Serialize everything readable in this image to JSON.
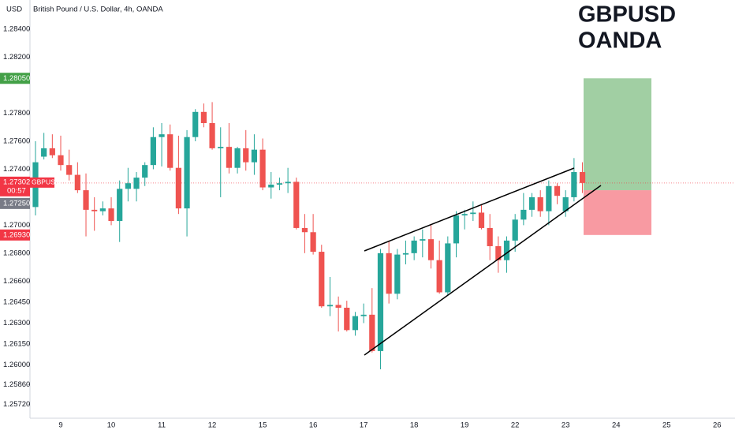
{
  "chart_data": {
    "type": "candlestick",
    "title": "British Pound / U.S. Dollar, 4h, OANDA",
    "y_label": "USD",
    "annotation": [
      "GBPUSD",
      "OANDA"
    ],
    "up_color": "#26a69a",
    "down_color": "#ef5350",
    "ylim": [
      1.2562,
      1.2861
    ],
    "yticks": [
      {
        "value": 1.284,
        "label": "1.28400"
      },
      {
        "value": 1.282,
        "label": "1.28200"
      },
      {
        "value": 1.278,
        "label": "1.27800"
      },
      {
        "value": 1.276,
        "label": "1.27600"
      },
      {
        "value": 1.274,
        "label": "1.27400"
      },
      {
        "value": 1.27,
        "label": "1.27000"
      },
      {
        "value": 1.268,
        "label": "1.26800"
      },
      {
        "value": 1.266,
        "label": "1.26600"
      },
      {
        "value": 1.2645,
        "label": "1.26450"
      },
      {
        "value": 1.263,
        "label": "1.26300"
      },
      {
        "value": 1.2615,
        "label": "1.26150"
      },
      {
        "value": 1.26,
        "label": "1.26000"
      },
      {
        "value": 1.2586,
        "label": "1.25860"
      },
      {
        "value": 1.2572,
        "label": "1.25720"
      }
    ],
    "price_labels": [
      {
        "value": 1.2805,
        "label": "1.28050",
        "color": "#43a047"
      },
      {
        "value": 1.2725,
        "label": "1.27250",
        "color": "#787b86"
      },
      {
        "value": 1.2693,
        "label": "1.26930",
        "color": "#f23645"
      }
    ],
    "current_price": {
      "value": 1.27302,
      "label": "1.27302",
      "symbol": "GBPUSD",
      "countdown": "00:57",
      "color": "#f23645"
    },
    "categories": [
      null,
      null,
      null,
      "9",
      null,
      null,
      null,
      null,
      null,
      "10",
      null,
      null,
      null,
      null,
      null,
      "11",
      null,
      null,
      null,
      null,
      null,
      "12",
      null,
      null,
      null,
      null,
      null,
      "15",
      null,
      null,
      null,
      null,
      null,
      "16",
      null,
      null,
      null,
      null,
      null,
      "17",
      null,
      null,
      null,
      null,
      null,
      "18",
      null,
      null,
      null,
      null,
      null,
      "19",
      null,
      null,
      null,
      null,
      null,
      "22",
      null,
      null,
      null,
      null,
      null,
      "23",
      null,
      null,
      null,
      null,
      null,
      "24",
      null,
      null,
      null,
      null,
      null,
      "25",
      null,
      null,
      null,
      null,
      null,
      "26"
    ],
    "open": [
      1.2713,
      1.2749,
      1.2755,
      1.275,
      1.2743,
      1.2736,
      1.2725,
      1.2711,
      1.271,
      1.2712,
      1.2703,
      1.2726,
      1.2726,
      1.2734,
      1.2743,
      1.2763,
      1.2765,
      1.2741,
      1.2712,
      1.2763,
      1.2781,
      1.2773,
      1.2755,
      1.2756,
      1.2741,
      1.2755,
      1.2745,
      1.2754,
      1.2727,
      1.2729,
      1.273,
      1.2731,
      1.2698,
      1.2695,
      1.2681,
      1.2642,
      1.2643,
      1.2641,
      1.2625,
      1.2635,
      1.2636,
      1.261,
      1.268,
      1.2651,
      1.2679,
      1.268,
      1.2689,
      1.269,
      1.2675,
      1.2652,
      1.2687,
      1.2707,
      1.2708,
      1.2709,
      1.2698,
      1.2685,
      1.2675,
      1.2689,
      1.2704,
      1.2711,
      1.272,
      1.271,
      1.2728,
      1.271,
      1.272,
      1.2738,
      null,
      null,
      null,
      null,
      null,
      null,
      null,
      null,
      null,
      null,
      null,
      null,
      null,
      null,
      null,
      null
    ],
    "high": [
      1.276,
      1.2766,
      1.2765,
      1.2764,
      1.2754,
      1.2745,
      1.2737,
      1.272,
      1.2717,
      1.272,
      1.2732,
      1.2741,
      1.2738,
      1.2745,
      1.277,
      1.2773,
      1.2772,
      1.2764,
      1.2768,
      1.2783,
      1.2787,
      1.2788,
      1.277,
      1.2773,
      1.2756,
      1.2768,
      1.2765,
      1.2762,
      1.2738,
      1.2734,
      1.2741,
      1.2734,
      1.2708,
      1.2708,
      1.2686,
      1.2663,
      1.2649,
      1.2646,
      1.2638,
      1.2644,
      1.2655,
      1.2683,
      1.2689,
      1.2683,
      1.2689,
      1.2692,
      1.2697,
      1.27,
      1.2689,
      1.2692,
      1.271,
      1.2711,
      1.2717,
      1.2715,
      1.2708,
      1.2692,
      1.2692,
      1.2708,
      1.2723,
      1.2723,
      1.2725,
      1.2732,
      1.273,
      1.2725,
      1.2748,
      1.2745,
      null,
      null,
      null,
      null,
      null,
      null,
      null,
      null,
      null,
      null,
      null,
      null,
      null,
      null,
      null,
      null
    ],
    "low": [
      1.2707,
      1.2747,
      1.2748,
      1.2739,
      1.2732,
      1.2723,
      1.2692,
      1.2696,
      1.2707,
      1.27,
      1.2688,
      1.2717,
      1.2717,
      1.2728,
      1.274,
      1.2742,
      1.2739,
      1.2708,
      1.2692,
      1.276,
      1.277,
      1.2754,
      1.272,
      1.2737,
      1.2737,
      1.2739,
      1.2736,
      1.2725,
      1.2719,
      1.2725,
      1.2723,
      1.2697,
      1.268,
      1.2679,
      1.2641,
      1.2635,
      1.2624,
      1.2624,
      1.2621,
      1.263,
      1.2609,
      1.2597,
      1.2644,
      1.2647,
      1.2672,
      1.2675,
      1.2677,
      1.2669,
      1.2651,
      1.265,
      1.2677,
      1.2697,
      1.2703,
      1.2697,
      1.2675,
      1.2666,
      1.2666,
      1.2681,
      1.27,
      1.2706,
      1.2706,
      1.27,
      1.2715,
      1.2706,
      1.2717,
      1.2723,
      null,
      null,
      null,
      null,
      null,
      null,
      null,
      null,
      null,
      null,
      null,
      null,
      null,
      null,
      null,
      null
    ],
    "close": [
      1.2745,
      1.2755,
      1.275,
      1.2743,
      1.2736,
      1.2725,
      1.2711,
      1.271,
      1.2712,
      1.2703,
      1.2726,
      1.273,
      1.2734,
      1.2743,
      1.2763,
      1.2765,
      1.2741,
      1.2712,
      1.2763,
      1.2781,
      1.2773,
      1.2755,
      1.2756,
      1.2741,
      1.2755,
      1.2745,
      1.2754,
      1.2727,
      1.2729,
      1.273,
      1.2731,
      1.2698,
      1.2695,
      1.2681,
      1.2642,
      1.2643,
      1.2641,
      1.2625,
      1.2635,
      1.2636,
      1.261,
      1.268,
      1.2651,
      1.2679,
      1.268,
      1.2689,
      1.269,
      1.2675,
      1.2652,
      1.2687,
      1.2707,
      1.2708,
      1.2709,
      1.2698,
      1.2685,
      1.2675,
      1.2689,
      1.2704,
      1.2711,
      1.272,
      1.271,
      1.2728,
      1.2721,
      1.272,
      1.2738,
      1.27302,
      null,
      null,
      null,
      null,
      null,
      null,
      null,
      null,
      null,
      null,
      null,
      null,
      null,
      null,
      null,
      null
    ]
  }
}
